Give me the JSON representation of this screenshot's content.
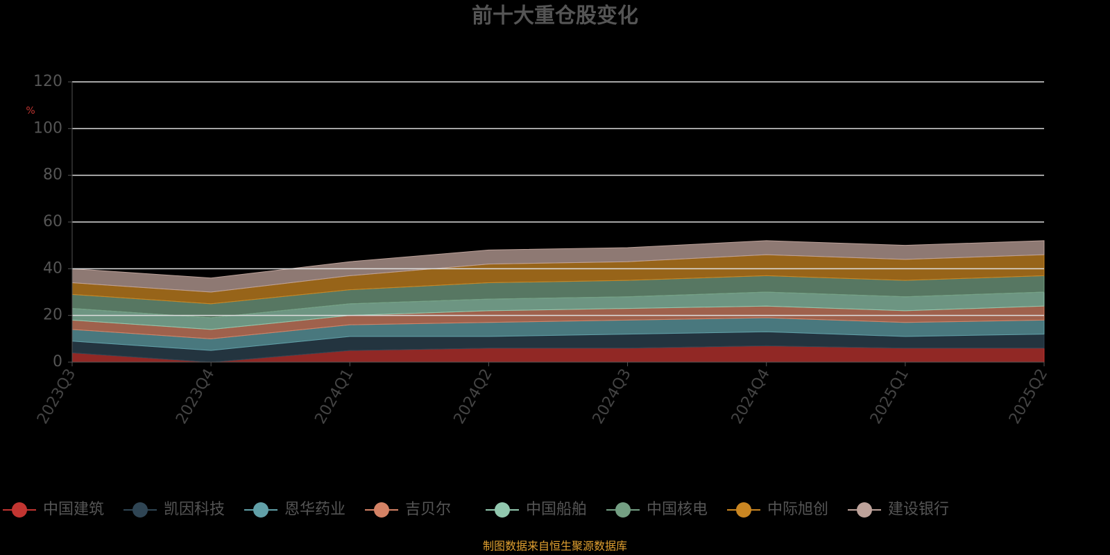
{
  "chart_data": {
    "type": "stacked-area",
    "title": "前十大重仓股变化",
    "y_label": "%",
    "categories": [
      "2023Q3",
      "2023Q4",
      "2024Q1",
      "2024Q2",
      "2024Q3",
      "2024Q4",
      "2025Q1",
      "2025Q2"
    ],
    "series": [
      {
        "name": "中国建筑",
        "color": "#c23531",
        "values": [
          4,
          0,
          5,
          6,
          6,
          7,
          6,
          6
        ]
      },
      {
        "name": "凯因科技",
        "color": "#2f4554",
        "values": [
          5,
          5,
          6,
          5,
          6,
          6,
          5,
          6
        ]
      },
      {
        "name": "恩华药业",
        "color": "#61a0a8",
        "values": [
          5,
          5,
          5,
          6,
          6,
          6,
          6,
          6
        ]
      },
      {
        "name": "吉贝尔",
        "color": "#d48265",
        "values": [
          4,
          4,
          4,
          5,
          5,
          5,
          5,
          6
        ]
      },
      {
        "name": "中国船舶",
        "color": "#91c7ae",
        "values": [
          5,
          5,
          5,
          5,
          5,
          6,
          6,
          6
        ]
      },
      {
        "name": "中国核电",
        "color": "#749f83",
        "values": [
          6,
          6,
          6,
          7,
          7,
          7,
          7,
          7
        ]
      },
      {
        "name": "中际旭创",
        "color": "#ca8622",
        "values": [
          5,
          5,
          6,
          8,
          8,
          9,
          9,
          9
        ]
      },
      {
        "name": "建设银行",
        "color": "#bda29a",
        "values": [
          6,
          6,
          6,
          6,
          6,
          6,
          6,
          6
        ]
      }
    ],
    "ylim": [
      0,
      120
    ],
    "yticks": [
      0,
      20,
      40,
      60,
      80,
      100,
      120
    ],
    "grid": true,
    "source": "制图数据来自恒生聚源数据库"
  }
}
